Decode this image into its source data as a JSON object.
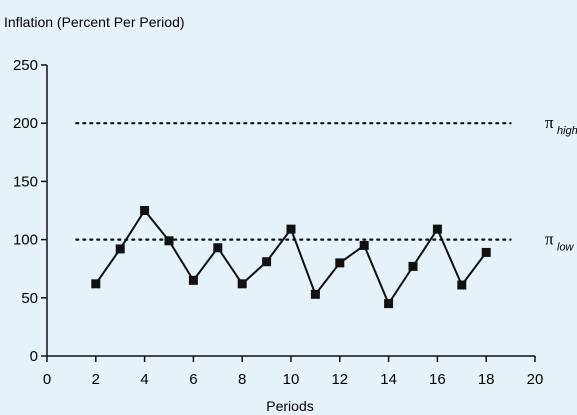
{
  "chart_data": {
    "type": "line",
    "title": "Inflation (Percent Per Period)",
    "xlabel": "Periods",
    "ylabel": "",
    "xlim": [
      0,
      20
    ],
    "ylim": [
      0,
      250
    ],
    "x_ticks": [
      0,
      2,
      4,
      6,
      8,
      10,
      12,
      14,
      16,
      18,
      20
    ],
    "y_ticks": [
      0,
      50,
      100,
      150,
      200,
      250
    ],
    "grid": false,
    "legend": "none",
    "series": [
      {
        "x": [
          2,
          3,
          4,
          5,
          6,
          7,
          8,
          9,
          10,
          11,
          12,
          13,
          14,
          15,
          16,
          17,
          18
        ],
        "y": [
          62,
          92,
          125,
          99,
          65,
          93,
          62,
          81,
          109,
          53,
          80,
          95,
          45,
          77,
          109,
          61,
          89
        ],
        "marker": "square",
        "color": "#111111"
      }
    ],
    "reference_lines": [
      {
        "y": 200,
        "style": "dotted",
        "symbol": "π",
        "subscript": "high"
      },
      {
        "y": 100,
        "style": "dotted",
        "symbol": "π",
        "subscript": "low"
      }
    ],
    "colors": {
      "background": "#e6f2fa",
      "line": "#111111"
    }
  }
}
